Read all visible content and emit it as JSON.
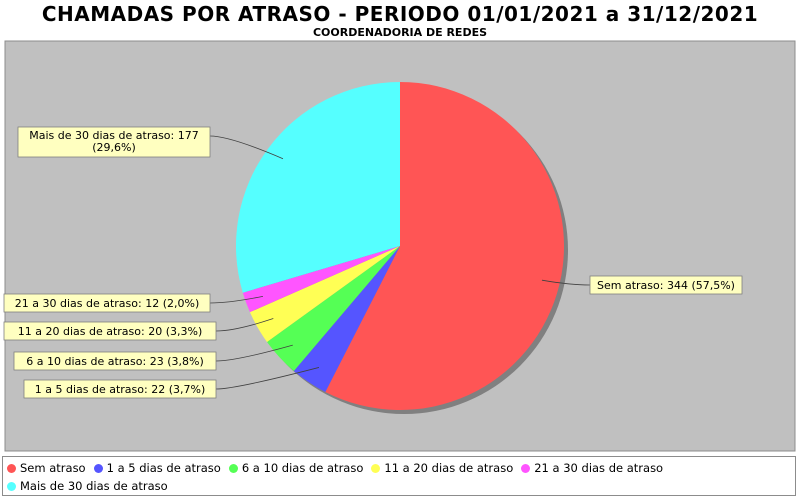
{
  "chart_data": {
    "type": "pie",
    "title": "CHAMADAS POR ATRASO - PERIODO 01/01/2021 a 31/12/2021",
    "subtitle": "COORDENADORIA DE REDES",
    "slices": [
      {
        "name": "Sem atraso",
        "value": 344,
        "label": "Sem atraso: 344 (57,5%)",
        "color": "#ff5555"
      },
      {
        "name": "1 a 5 dias de atraso",
        "value": 22,
        "label": "1 a 5 dias de atraso: 22 (3,7%)",
        "color": "#5555ff"
      },
      {
        "name": "6 a 10 dias de atraso",
        "value": 23,
        "label": "6 a 10 dias de atraso: 23 (3,8%)",
        "color": "#55ff55"
      },
      {
        "name": "11 a 20 dias de atraso",
        "value": 20,
        "label": "11 a 20 dias de atraso: 20 (3,3%)",
        "color": "#ffff55"
      },
      {
        "name": "21 a 30 dias de atraso",
        "value": 12,
        "label": "21 a 30 dias de atraso: 12 (2,0%)",
        "color": "#ff55ff"
      },
      {
        "name": "Mais de 30 dias de atraso",
        "value": 177,
        "label": "Mais de 30 dias de atraso: 177 (29,6%)",
        "color": "#55ffff"
      }
    ],
    "legend_position": "bottom",
    "plot_background": "#c0c0c0",
    "label_background": "#ffffc0"
  }
}
